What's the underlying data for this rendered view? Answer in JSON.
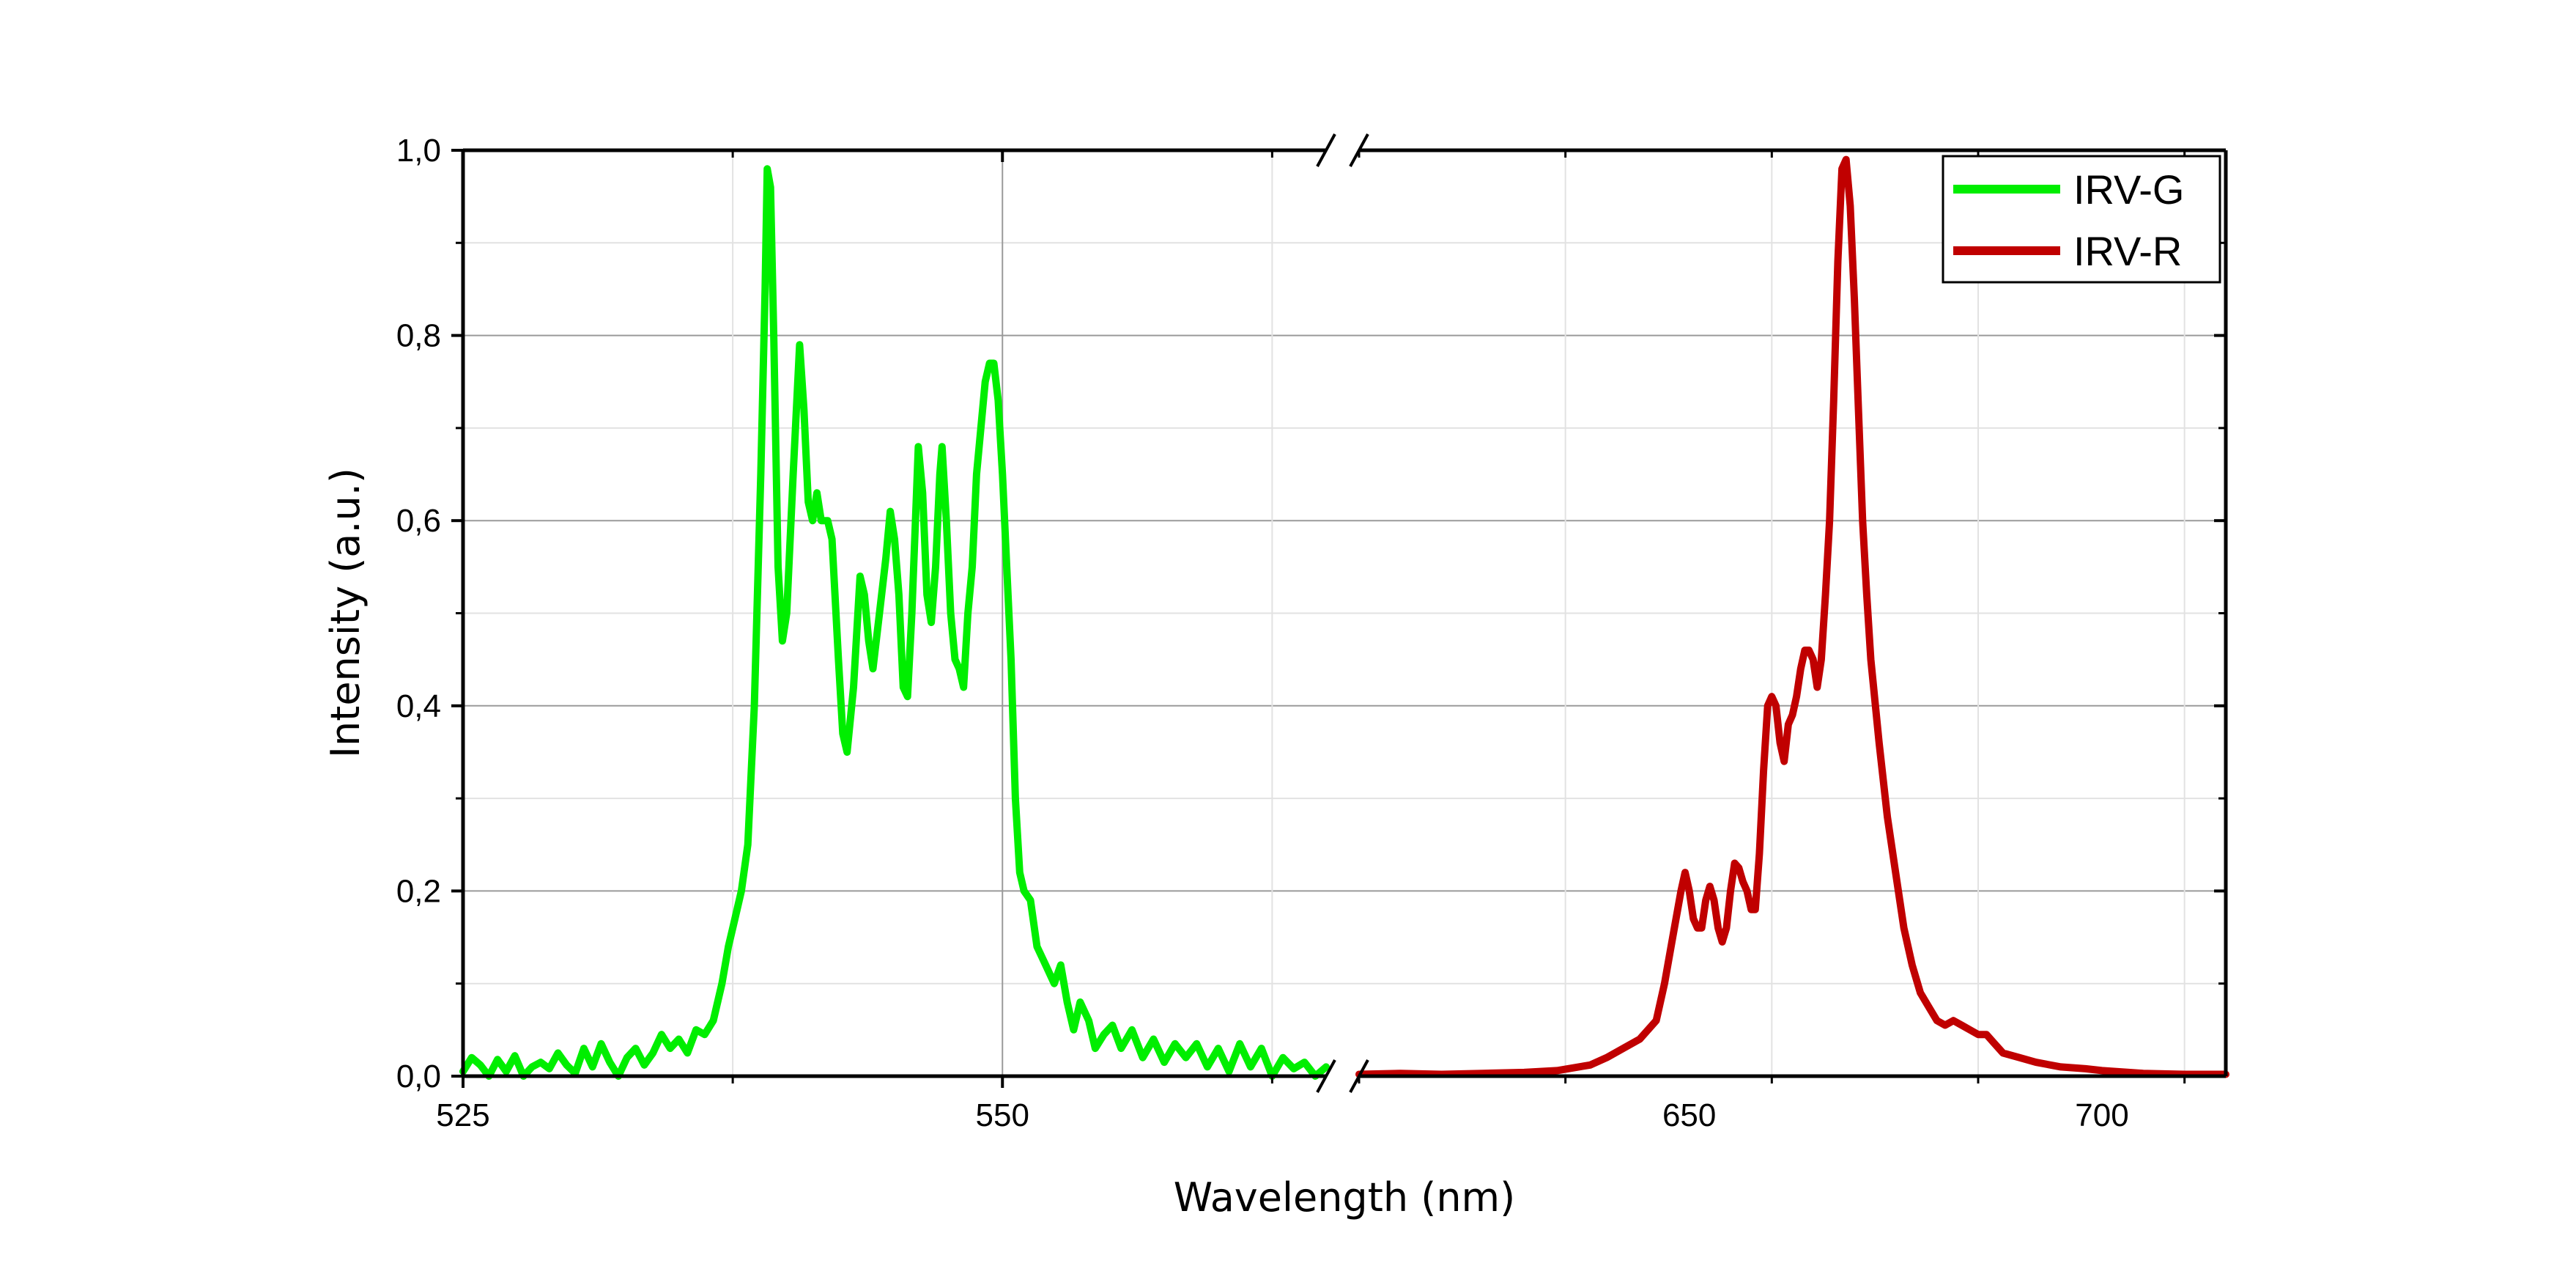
{
  "chart_data": {
    "type": "line",
    "xlabel": "Wavelength (nm)",
    "ylabel": "Intensity (a.u.)",
    "ylim": [
      0,
      1.0
    ],
    "y_ticks": [
      "0,0",
      "0,2",
      "0,4",
      "0,6",
      "0,8",
      "1,0"
    ],
    "y_tick_values": [
      0,
      0.2,
      0.4,
      0.6,
      0.8,
      1.0
    ],
    "grid": true,
    "legend_position": "top-right",
    "x_axis_break": true,
    "panels": [
      {
        "xlim": [
          525,
          565
        ],
        "x_ticks": [
          "525",
          "550"
        ],
        "x_tick_values": [
          525,
          550
        ]
      },
      {
        "xlim": [
          610,
          715
        ],
        "x_ticks": [
          "650",
          "700"
        ],
        "x_tick_values": [
          650,
          700
        ]
      }
    ],
    "series": [
      {
        "name": "IRV-G",
        "color": "#00ee00",
        "panel": 0,
        "points": [
          [
            525.0,
            0.005
          ],
          [
            525.4,
            0.02
          ],
          [
            525.8,
            0.012
          ],
          [
            526.2,
            0.0
          ],
          [
            526.6,
            0.018
          ],
          [
            527.0,
            0.005
          ],
          [
            527.4,
            0.022
          ],
          [
            527.8,
            0.0
          ],
          [
            528.2,
            0.01
          ],
          [
            528.6,
            0.015
          ],
          [
            529.0,
            0.008
          ],
          [
            529.4,
            0.025
          ],
          [
            529.8,
            0.012
          ],
          [
            530.2,
            0.003
          ],
          [
            530.6,
            0.03
          ],
          [
            531.0,
            0.01
          ],
          [
            531.4,
            0.035
          ],
          [
            531.8,
            0.015
          ],
          [
            532.2,
            0.0
          ],
          [
            532.6,
            0.02
          ],
          [
            533.0,
            0.03
          ],
          [
            533.4,
            0.012
          ],
          [
            533.8,
            0.025
          ],
          [
            534.2,
            0.045
          ],
          [
            534.6,
            0.03
          ],
          [
            535.0,
            0.04
          ],
          [
            535.4,
            0.025
          ],
          [
            535.8,
            0.05
          ],
          [
            536.2,
            0.045
          ],
          [
            536.6,
            0.06
          ],
          [
            537.0,
            0.1
          ],
          [
            537.3,
            0.14
          ],
          [
            537.6,
            0.17
          ],
          [
            537.9,
            0.2
          ],
          [
            538.2,
            0.25
          ],
          [
            538.5,
            0.4
          ],
          [
            538.8,
            0.65
          ],
          [
            539.0,
            0.85
          ],
          [
            539.1,
            0.98
          ],
          [
            539.25,
            0.96
          ],
          [
            539.4,
            0.8
          ],
          [
            539.6,
            0.55
          ],
          [
            539.8,
            0.47
          ],
          [
            540.0,
            0.5
          ],
          [
            540.3,
            0.65
          ],
          [
            540.6,
            0.79
          ],
          [
            540.8,
            0.72
          ],
          [
            541.0,
            0.62
          ],
          [
            541.2,
            0.6
          ],
          [
            541.4,
            0.63
          ],
          [
            541.6,
            0.6
          ],
          [
            541.9,
            0.6
          ],
          [
            542.1,
            0.58
          ],
          [
            542.4,
            0.45
          ],
          [
            542.6,
            0.37
          ],
          [
            542.8,
            0.35
          ],
          [
            543.1,
            0.42
          ],
          [
            543.4,
            0.54
          ],
          [
            543.6,
            0.52
          ],
          [
            543.8,
            0.47
          ],
          [
            544.0,
            0.44
          ],
          [
            544.3,
            0.5
          ],
          [
            544.6,
            0.56
          ],
          [
            544.8,
            0.61
          ],
          [
            545.0,
            0.58
          ],
          [
            545.2,
            0.52
          ],
          [
            545.4,
            0.42
          ],
          [
            545.6,
            0.41
          ],
          [
            545.8,
            0.5
          ],
          [
            546.0,
            0.62
          ],
          [
            546.1,
            0.68
          ],
          [
            546.3,
            0.63
          ],
          [
            546.5,
            0.52
          ],
          [
            546.7,
            0.49
          ],
          [
            546.9,
            0.55
          ],
          [
            547.1,
            0.65
          ],
          [
            547.2,
            0.68
          ],
          [
            547.4,
            0.6
          ],
          [
            547.6,
            0.5
          ],
          [
            547.8,
            0.45
          ],
          [
            548.0,
            0.44
          ],
          [
            548.2,
            0.42
          ],
          [
            548.4,
            0.5
          ],
          [
            548.6,
            0.55
          ],
          [
            548.8,
            0.65
          ],
          [
            549.0,
            0.7
          ],
          [
            549.2,
            0.75
          ],
          [
            549.4,
            0.77
          ],
          [
            549.6,
            0.77
          ],
          [
            549.8,
            0.73
          ],
          [
            550.0,
            0.65
          ],
          [
            550.2,
            0.55
          ],
          [
            550.4,
            0.45
          ],
          [
            550.6,
            0.3
          ],
          [
            550.8,
            0.22
          ],
          [
            551.0,
            0.2
          ],
          [
            551.3,
            0.19
          ],
          [
            551.6,
            0.14
          ],
          [
            552.0,
            0.12
          ],
          [
            552.4,
            0.1
          ],
          [
            552.7,
            0.12
          ],
          [
            553.0,
            0.08
          ],
          [
            553.3,
            0.05
          ],
          [
            553.6,
            0.08
          ],
          [
            554.0,
            0.06
          ],
          [
            554.3,
            0.03
          ],
          [
            554.7,
            0.045
          ],
          [
            555.1,
            0.055
          ],
          [
            555.5,
            0.03
          ],
          [
            556.0,
            0.05
          ],
          [
            556.5,
            0.02
          ],
          [
            557.0,
            0.04
          ],
          [
            557.5,
            0.015
          ],
          [
            558.0,
            0.035
          ],
          [
            558.5,
            0.02
          ],
          [
            559.0,
            0.035
          ],
          [
            559.5,
            0.01
          ],
          [
            560.0,
            0.03
          ],
          [
            560.5,
            0.005
          ],
          [
            561.0,
            0.035
          ],
          [
            561.5,
            0.01
          ],
          [
            562.0,
            0.03
          ],
          [
            562.5,
            0.0
          ],
          [
            563.0,
            0.02
          ],
          [
            563.5,
            0.008
          ],
          [
            564.0,
            0.015
          ],
          [
            564.5,
            0.0
          ],
          [
            565.0,
            0.01
          ]
        ]
      },
      {
        "name": "IRV-R",
        "color": "#c00000",
        "panel": 1,
        "points": [
          [
            610,
            0.002
          ],
          [
            615,
            0.003
          ],
          [
            620,
            0.002
          ],
          [
            625,
            0.003
          ],
          [
            630,
            0.004
          ],
          [
            634,
            0.006
          ],
          [
            638,
            0.012
          ],
          [
            640,
            0.02
          ],
          [
            642,
            0.03
          ],
          [
            644,
            0.04
          ],
          [
            646,
            0.06
          ],
          [
            647,
            0.1
          ],
          [
            648,
            0.15
          ],
          [
            649,
            0.2
          ],
          [
            649.5,
            0.22
          ],
          [
            650,
            0.2
          ],
          [
            650.5,
            0.17
          ],
          [
            651,
            0.16
          ],
          [
            651.5,
            0.16
          ],
          [
            652,
            0.19
          ],
          [
            652.5,
            0.205
          ],
          [
            653,
            0.19
          ],
          [
            653.5,
            0.16
          ],
          [
            654,
            0.145
          ],
          [
            654.5,
            0.16
          ],
          [
            655,
            0.2
          ],
          [
            655.5,
            0.23
          ],
          [
            656,
            0.225
          ],
          [
            656.5,
            0.21
          ],
          [
            657,
            0.2
          ],
          [
            657.5,
            0.18
          ],
          [
            658,
            0.18
          ],
          [
            658.5,
            0.24
          ],
          [
            659,
            0.33
          ],
          [
            659.5,
            0.4
          ],
          [
            660,
            0.41
          ],
          [
            660.5,
            0.4
          ],
          [
            661,
            0.36
          ],
          [
            661.5,
            0.34
          ],
          [
            662,
            0.38
          ],
          [
            662.5,
            0.39
          ],
          [
            663,
            0.41
          ],
          [
            663.5,
            0.44
          ],
          [
            664,
            0.46
          ],
          [
            664.5,
            0.46
          ],
          [
            665,
            0.45
          ],
          [
            665.5,
            0.42
          ],
          [
            666,
            0.45
          ],
          [
            666.5,
            0.52
          ],
          [
            667,
            0.6
          ],
          [
            667.5,
            0.73
          ],
          [
            668,
            0.88
          ],
          [
            668.5,
            0.98
          ],
          [
            669,
            0.99
          ],
          [
            669.5,
            0.94
          ],
          [
            670,
            0.84
          ],
          [
            670.5,
            0.72
          ],
          [
            671,
            0.6
          ],
          [
            671.5,
            0.52
          ],
          [
            672,
            0.45
          ],
          [
            673,
            0.36
          ],
          [
            674,
            0.28
          ],
          [
            675,
            0.22
          ],
          [
            676,
            0.16
          ],
          [
            677,
            0.12
          ],
          [
            678,
            0.09
          ],
          [
            679,
            0.075
          ],
          [
            680,
            0.06
          ],
          [
            681,
            0.055
          ],
          [
            682,
            0.06
          ],
          [
            683,
            0.055
          ],
          [
            684,
            0.05
          ],
          [
            685,
            0.045
          ],
          [
            686,
            0.045
          ],
          [
            687,
            0.035
          ],
          [
            688,
            0.025
          ],
          [
            690,
            0.02
          ],
          [
            692,
            0.015
          ],
          [
            695,
            0.01
          ],
          [
            698,
            0.008
          ],
          [
            700,
            0.006
          ],
          [
            705,
            0.003
          ],
          [
            710,
            0.002
          ],
          [
            715,
            0.002
          ]
        ]
      }
    ]
  }
}
